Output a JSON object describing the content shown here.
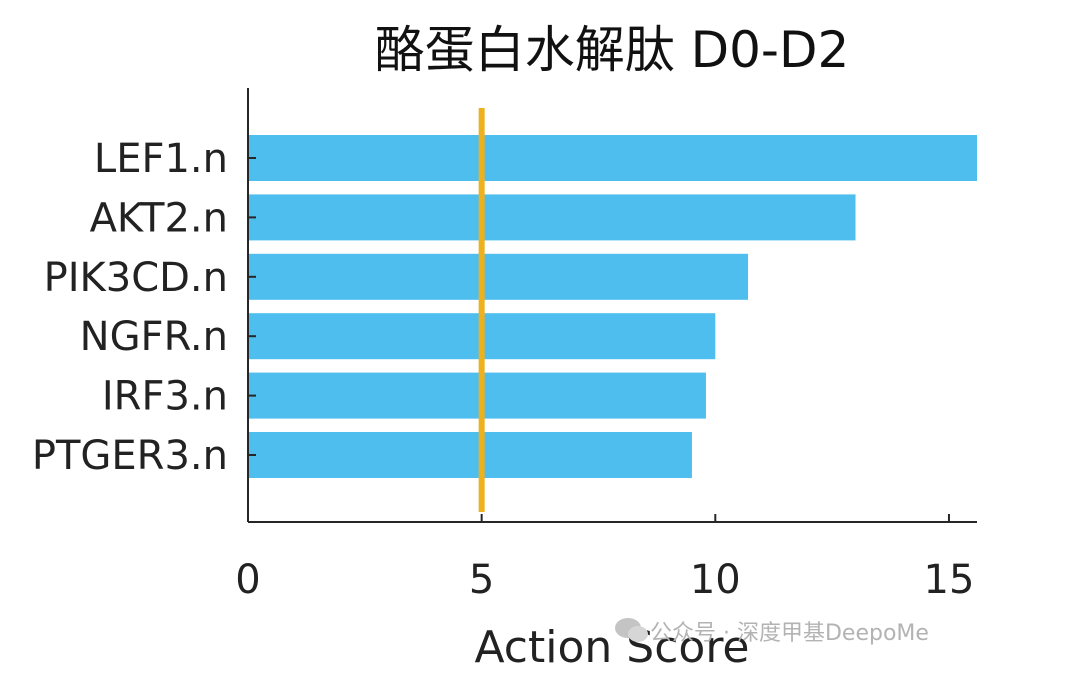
{
  "chart_data": {
    "type": "bar",
    "orientation": "horizontal",
    "title": "酪蛋白水解肽 D0-D2",
    "xlabel": "Action Score",
    "ylabel": "",
    "xlim": [
      0,
      15.6
    ],
    "xticks": [
      "0",
      "5",
      "10",
      "15"
    ],
    "categories": [
      "LEF1.n",
      "AKT2.n",
      "PIK3CD.n",
      "NGFR.n",
      "IRF3.n",
      "PTGER3.n"
    ],
    "values": [
      15.6,
      13.0,
      10.7,
      10.0,
      9.8,
      9.5
    ],
    "reference_line": {
      "x": 5,
      "color": "#EDB120"
    },
    "bar_color": "#4DBEEE",
    "grid": false
  },
  "watermark": {
    "text": "公众号 · 深度甲基DeepoMe",
    "icon": "wechat-icon"
  }
}
